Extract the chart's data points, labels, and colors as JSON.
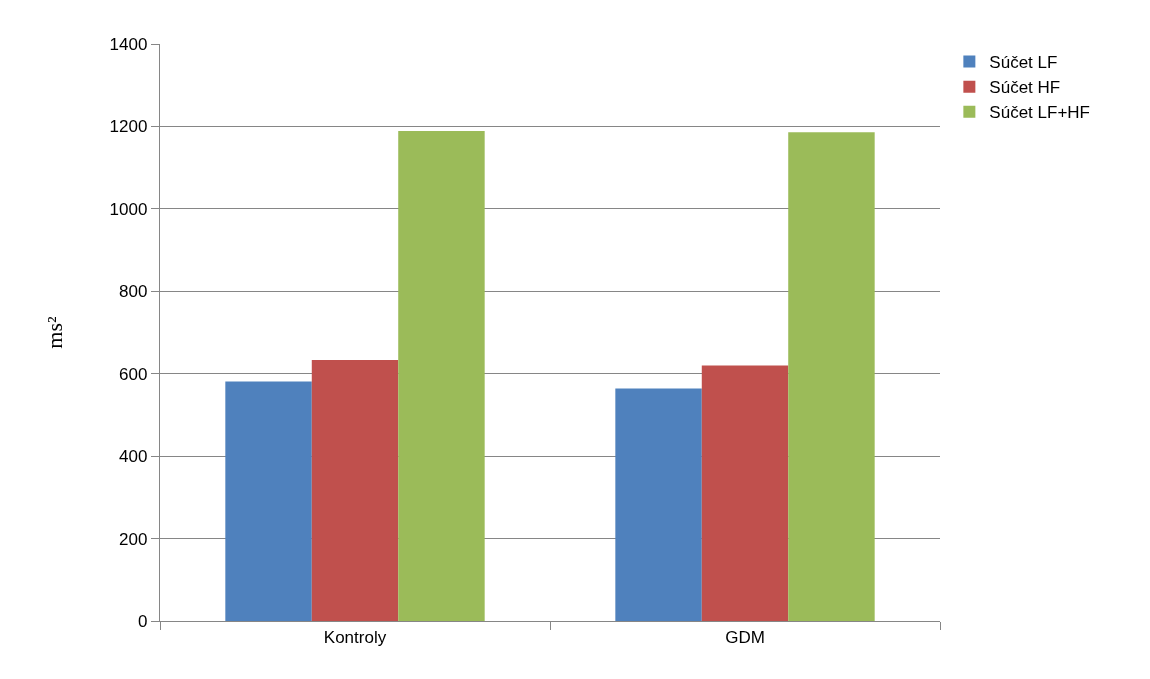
{
  "chart_data": {
    "type": "bar",
    "categories": [
      "Kontroly",
      "GDM"
    ],
    "series": [
      {
        "name": "Súčet LF",
        "color": "#4f81bd",
        "values": [
          581,
          564
        ]
      },
      {
        "name": "Súčet HF",
        "color": "#c0504d",
        "values": [
          633,
          620
        ]
      },
      {
        "name": "Súčet LF+HF",
        "color": "#9bbb59",
        "values": [
          1189,
          1186
        ]
      }
    ],
    "ylabel": "ms²",
    "ylim": [
      0,
      1400
    ],
    "yticks": [
      0,
      200,
      400,
      600,
      800,
      1000,
      1200,
      1400
    ],
    "grid": "y",
    "legend": "top right"
  }
}
